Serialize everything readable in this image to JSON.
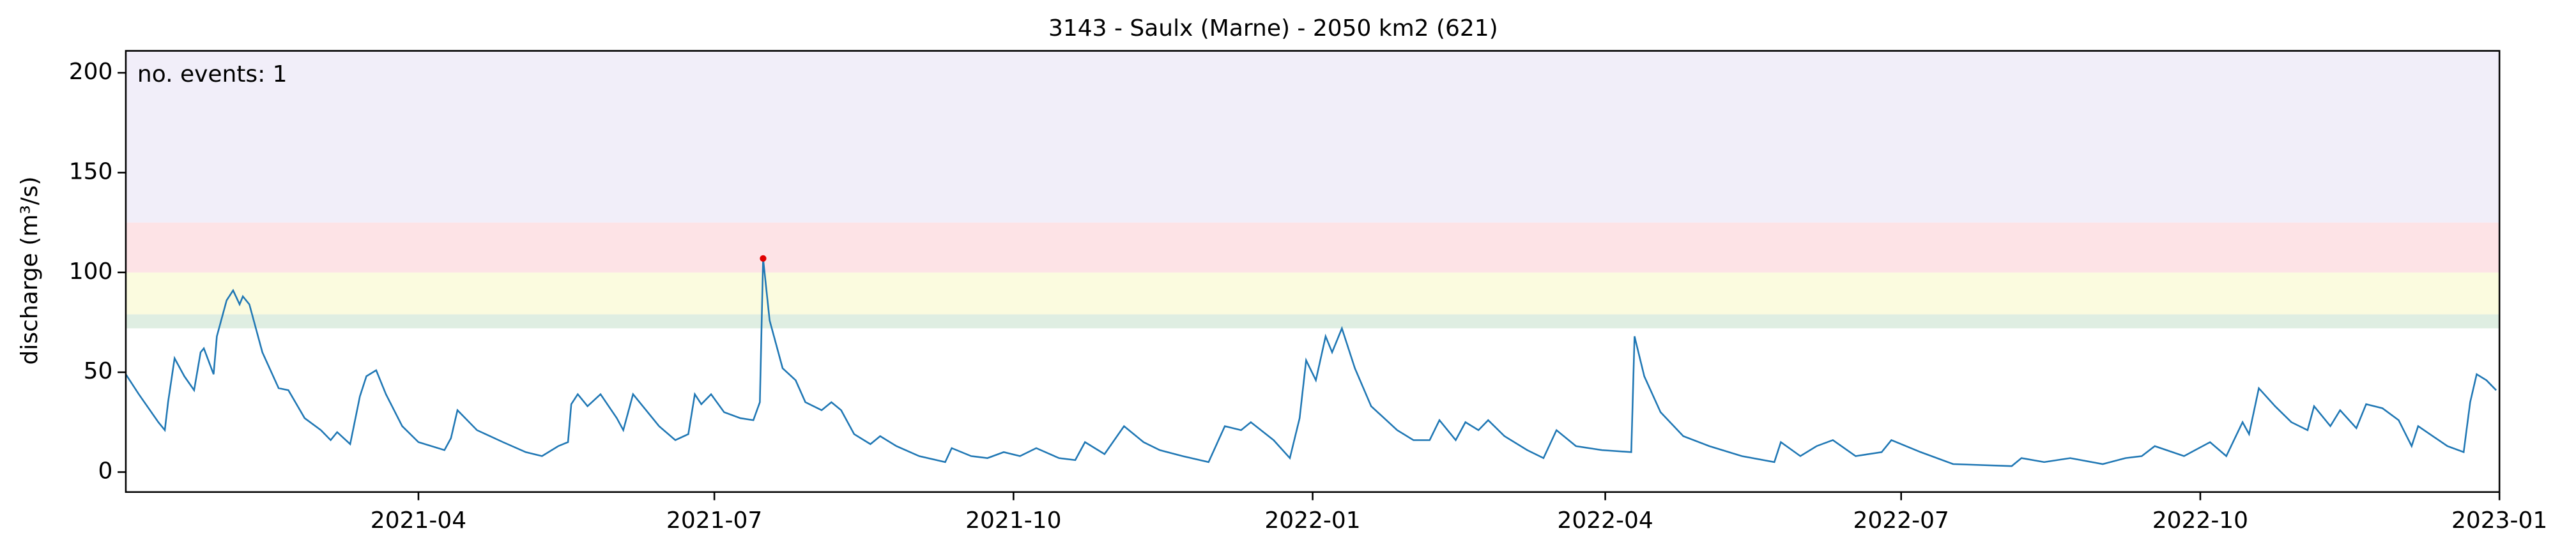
{
  "chart_data": {
    "type": "line",
    "title": "3143 - Saulx (Marne) - 2050 km2 (621)",
    "y_label": "discharge (m³/s)",
    "annotation": "no. events: 1",
    "annotation_color": "#e00000",
    "color": "#1f77b4",
    "xlim": [
      "2021-01-01",
      "2023-01-01"
    ],
    "xticks": [
      "2021-04",
      "2021-07",
      "2021-10",
      "2022-01",
      "2022-04",
      "2022-07",
      "2022-10",
      "2023-01"
    ],
    "ylim": [
      -10,
      211
    ],
    "yticks": [
      0,
      50,
      100,
      150,
      200
    ],
    "bands": [
      {
        "from": 72,
        "to": 79,
        "color": "#dfeee2"
      },
      {
        "from": 79,
        "to": 100,
        "color": "#fbfbdf"
      },
      {
        "from": 100,
        "to": 125,
        "color": "#fde3e6"
      },
      {
        "from": 125,
        "to": 211,
        "color": "#f1eef9"
      }
    ],
    "events": {
      "x": [
        "2021-07-16"
      ],
      "values": [
        107
      ],
      "color": "#e00000"
    },
    "x": [
      "2021-01-01",
      "2021-01-05",
      "2021-01-11",
      "2021-01-13",
      "2021-01-14",
      "2021-01-16",
      "2021-01-19",
      "2021-01-22",
      "2021-01-24",
      "2021-01-25",
      "2021-01-28",
      "2021-01-29",
      "2021-02-01",
      "2021-02-03",
      "2021-02-05",
      "2021-02-06",
      "2021-02-08",
      "2021-02-12",
      "2021-02-17",
      "2021-02-20",
      "2021-02-25",
      "2021-03-02",
      "2021-03-05",
      "2021-03-07",
      "2021-03-11",
      "2021-03-14",
      "2021-03-16",
      "2021-03-19",
      "2021-03-22",
      "2021-03-27",
      "2021-04-01",
      "2021-04-09",
      "2021-04-11",
      "2021-04-13",
      "2021-04-19",
      "2021-04-27",
      "2021-05-04",
      "2021-05-09",
      "2021-05-14",
      "2021-05-17",
      "2021-05-18",
      "2021-05-20",
      "2021-05-23",
      "2021-05-27",
      "2021-06-01",
      "2021-06-03",
      "2021-06-06",
      "2021-06-10",
      "2021-06-14",
      "2021-06-19",
      "2021-06-23",
      "2021-06-25",
      "2021-06-27",
      "2021-06-30",
      "2021-07-04",
      "2021-07-09",
      "2021-07-13",
      "2021-07-15",
      "2021-07-16",
      "2021-07-18",
      "2021-07-22",
      "2021-07-26",
      "2021-07-29",
      "2021-08-03",
      "2021-08-06",
      "2021-08-09",
      "2021-08-13",
      "2021-08-18",
      "2021-08-21",
      "2021-08-26",
      "2021-09-02",
      "2021-09-10",
      "2021-09-12",
      "2021-09-18",
      "2021-09-23",
      "2021-09-28",
      "2021-10-03",
      "2021-10-08",
      "2021-10-15",
      "2021-10-20",
      "2021-10-23",
      "2021-10-29",
      "2021-11-04",
      "2021-11-10",
      "2021-11-15",
      "2021-11-22",
      "2021-11-30",
      "2021-12-05",
      "2021-12-10",
      "2021-12-13",
      "2021-12-20",
      "2021-12-25",
      "2021-12-28",
      "2021-12-30",
      "2022-01-02",
      "2022-01-05",
      "2022-01-07",
      "2022-01-10",
      "2022-01-14",
      "2022-01-19",
      "2022-01-27",
      "2022-02-01",
      "2022-02-06",
      "2022-02-09",
      "2022-02-14",
      "2022-02-17",
      "2022-02-21",
      "2022-02-24",
      "2022-03-01",
      "2022-03-08",
      "2022-03-13",
      "2022-03-17",
      "2022-03-23",
      "2022-03-31",
      "2022-04-09",
      "2022-04-10",
      "2022-04-13",
      "2022-04-18",
      "2022-04-25",
      "2022-05-03",
      "2022-05-13",
      "2022-05-23",
      "2022-05-25",
      "2022-05-31",
      "2022-06-05",
      "2022-06-10",
      "2022-06-17",
      "2022-06-25",
      "2022-06-28",
      "2022-07-07",
      "2022-07-17",
      "2022-08-04",
      "2022-08-07",
      "2022-08-14",
      "2022-08-22",
      "2022-09-01",
      "2022-09-08",
      "2022-09-13",
      "2022-09-17",
      "2022-09-26",
      "2022-10-04",
      "2022-10-09",
      "2022-10-14",
      "2022-10-16",
      "2022-10-19",
      "2022-10-24",
      "2022-10-29",
      "2022-11-03",
      "2022-11-05",
      "2022-11-10",
      "2022-11-13",
      "2022-11-18",
      "2022-11-21",
      "2022-11-26",
      "2022-12-01",
      "2022-12-05",
      "2022-12-07",
      "2022-12-16",
      "2022-12-21",
      "2022-12-23",
      "2022-12-25",
      "2022-12-28",
      "2022-12-31"
    ],
    "values": [
      49,
      39,
      25,
      21,
      35,
      57,
      48,
      41,
      60,
      62,
      49,
      68,
      86,
      91,
      84,
      88,
      84,
      60,
      42,
      41,
      27,
      21,
      16,
      20,
      14,
      38,
      48,
      51,
      39,
      23,
      15,
      11,
      17,
      31,
      21,
      15,
      10,
      8,
      13,
      15,
      34,
      39,
      33,
      39,
      27,
      21,
      39,
      31,
      23,
      16,
      19,
      39,
      34,
      39,
      30,
      27,
      26,
      35,
      107,
      76,
      52,
      46,
      35,
      31,
      35,
      31,
      19,
      14,
      18,
      13,
      8,
      5,
      12,
      8,
      7,
      10,
      8,
      12,
      7,
      6,
      15,
      9,
      23,
      15,
      11,
      8,
      5,
      23,
      21,
      25,
      16,
      7,
      27,
      56,
      46,
      68,
      60,
      72,
      52,
      33,
      21,
      16,
      16,
      26,
      16,
      25,
      21,
      26,
      18,
      11,
      7,
      21,
      13,
      11,
      10,
      68,
      48,
      30,
      18,
      13,
      8,
      5,
      15,
      8,
      13,
      16,
      8,
      10,
      16,
      10,
      4,
      3,
      7,
      5,
      7,
      4,
      7,
      8,
      13,
      8,
      15,
      8,
      25,
      19,
      42,
      33,
      25,
      21,
      33,
      23,
      31,
      22,
      34,
      32,
      26,
      13,
      23,
      13,
      10,
      35,
      49,
      46,
      41
    ]
  }
}
